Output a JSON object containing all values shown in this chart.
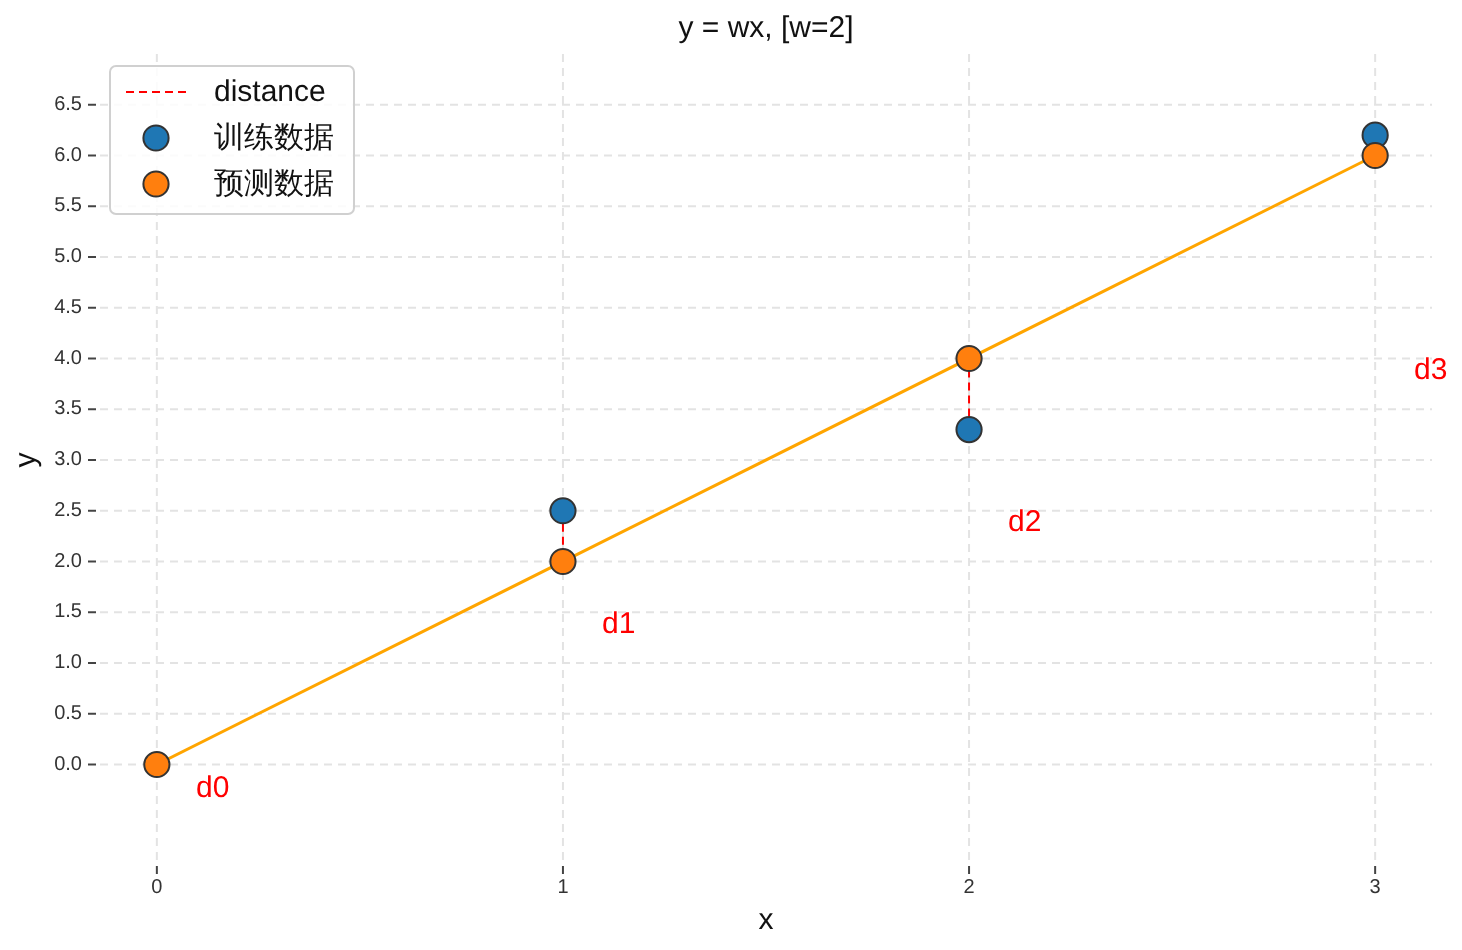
{
  "chart_data": {
    "type": "scatter",
    "title": "y = wx, [w=2]",
    "xlabel": "x",
    "ylabel": "y",
    "xlim": [
      -0.14,
      3.14
    ],
    "ylim": [
      -1,
      7
    ],
    "xticks": [
      0,
      1,
      2,
      3
    ],
    "yticks": [
      {
        "value": 0,
        "label": "0.0"
      },
      0.5,
      {
        "value": 1,
        "label": "1.0"
      },
      1.5,
      {
        "value": 2,
        "label": "2.0"
      },
      2.5,
      {
        "value": 3,
        "label": "3.0"
      },
      3.5,
      {
        "value": 4,
        "label": "4.0"
      },
      4.5,
      {
        "value": 5,
        "label": "5.0"
      },
      5.5,
      {
        "value": 6,
        "label": "6.0"
      },
      6.5
    ],
    "grid": true,
    "legend": "top left",
    "series": [
      {
        "type": "line",
        "color": "#ffa500",
        "x": [
          0,
          3
        ],
        "values": [
          0,
          6
        ]
      },
      {
        "name": "distance",
        "type": "line",
        "line_style": "dashed",
        "color": "#ff0000",
        "x": [
          1,
          1,
          null,
          2,
          2,
          null,
          3,
          3
        ],
        "values": [
          2.5,
          2,
          null,
          3.3,
          4,
          null,
          6.2,
          6
        ]
      },
      {
        "name": "训练数据",
        "marker": "circle",
        "color": "#1f77b4",
        "x": [
          1,
          2,
          3
        ],
        "values": [
          2.5,
          3.3,
          6.2
        ]
      },
      {
        "name": "预测数据",
        "marker": "circle",
        "color": "#ff7f0e",
        "x": [
          0,
          1,
          2,
          3
        ],
        "values": [
          0,
          2,
          4,
          6
        ]
      }
    ],
    "annotations": [
      "d0",
      "d1",
      "d2",
      "d3"
    ]
  }
}
